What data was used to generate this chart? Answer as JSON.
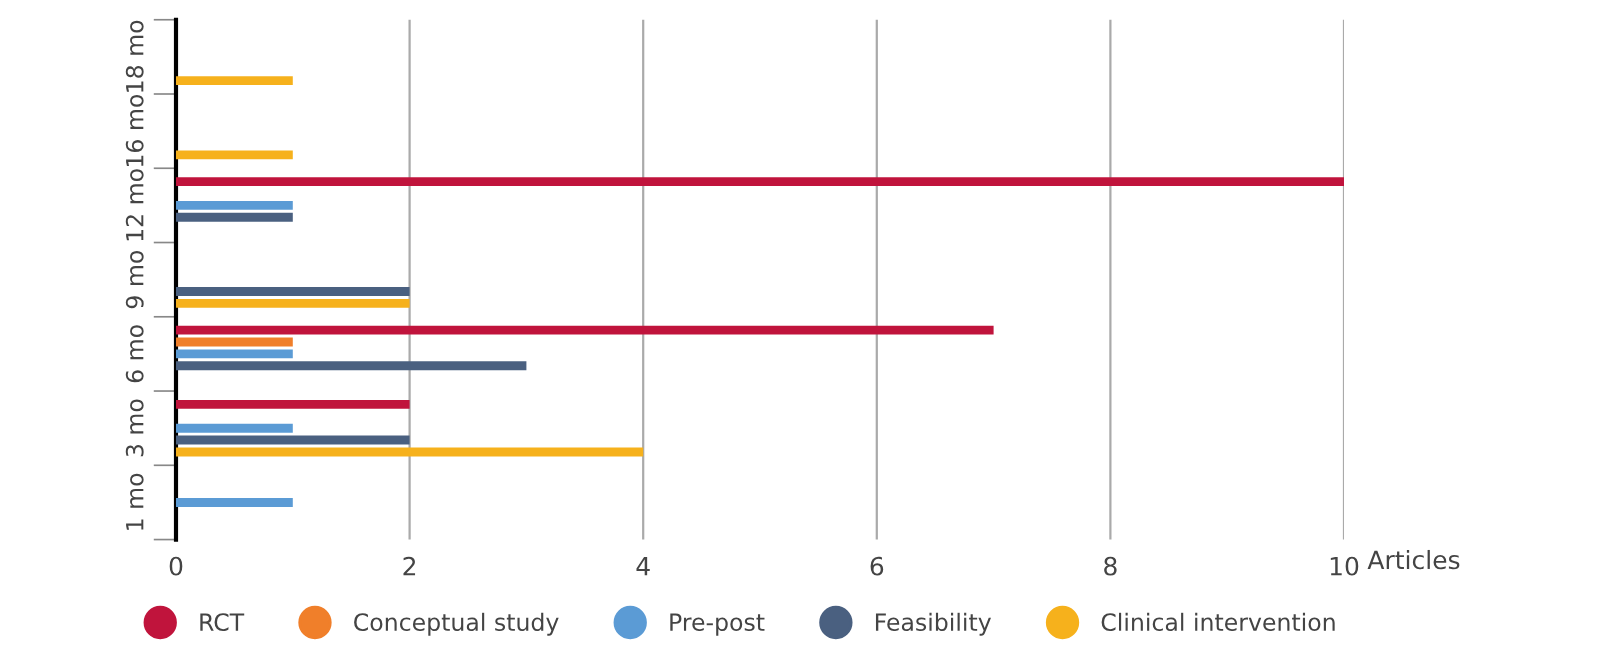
{
  "chart_data": {
    "type": "bar",
    "orientation": "horizontal",
    "xlabel": "Articles",
    "categories": [
      "18 mo",
      "16 mo",
      "12 mo",
      "9 mo",
      "6 mo",
      "3 mo",
      "1 mo"
    ],
    "series": [
      {
        "name": "RCT",
        "color": "#c0143c",
        "values": [
          null,
          null,
          10,
          null,
          7,
          2,
          null
        ]
      },
      {
        "name": "Conceptual study",
        "color": "#f07f2a",
        "values": [
          null,
          null,
          null,
          null,
          1,
          null,
          null
        ]
      },
      {
        "name": "Pre-post",
        "color": "#5b9bd5",
        "values": [
          null,
          null,
          1,
          null,
          1,
          1,
          1
        ]
      },
      {
        "name": "Feasibility",
        "color": "#4a6080",
        "values": [
          null,
          null,
          1,
          2,
          3,
          2,
          null
        ]
      },
      {
        "name": "Clinical intervention",
        "color": "#f6b11c",
        "values": [
          1,
          1,
          null,
          2,
          null,
          4,
          null
        ]
      }
    ],
    "xlim": [
      0,
      10
    ],
    "xticks": [
      0,
      2,
      4,
      6,
      8,
      10
    ],
    "grid": "x",
    "legend": "bottom"
  }
}
